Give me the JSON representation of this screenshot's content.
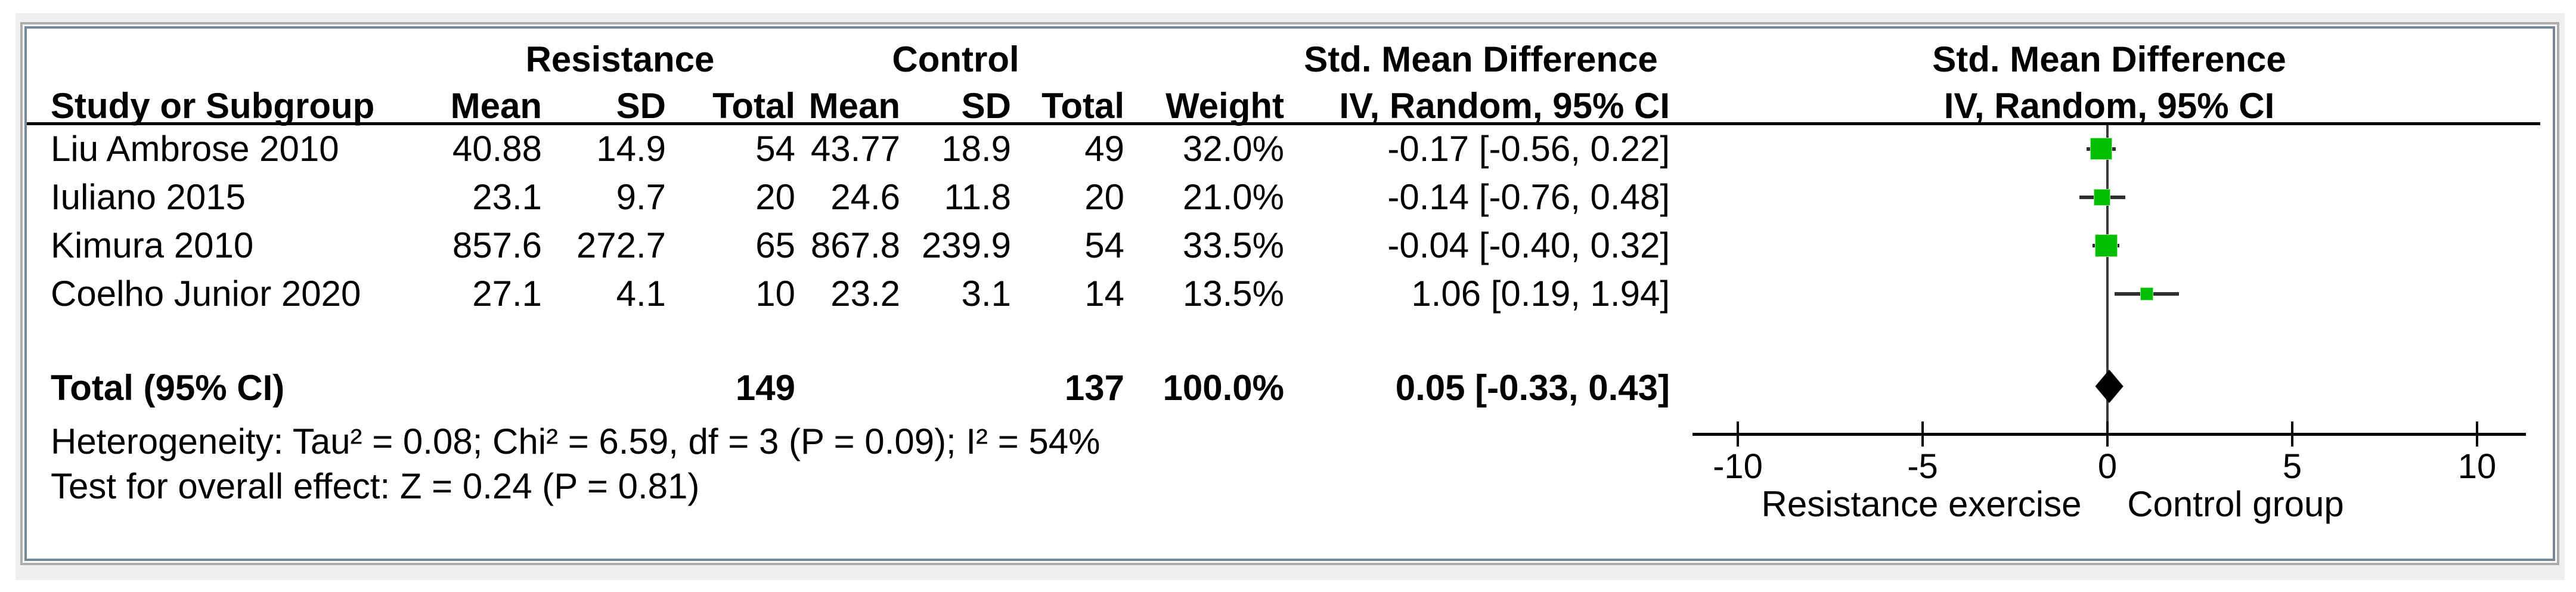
{
  "header": {
    "groups": {
      "resistance": "Resistance",
      "control": "Control",
      "smd": "Std. Mean Difference",
      "smd_plot": "Std. Mean Difference"
    },
    "columns": {
      "study": "Study or Subgroup",
      "mean": "Mean",
      "sd": "SD",
      "total": "Total",
      "weight": "Weight",
      "iv": "IV, Random, 95% CI",
      "iv_plot": "IV, Random, 95% CI"
    }
  },
  "table": {
    "rows": [
      {
        "study": "Liu Ambrose 2010",
        "r_mean": "40.88",
        "r_sd": "14.9",
        "r_total": "54",
        "c_mean": "43.77",
        "c_sd": "18.9",
        "c_total": "49",
        "weight": "32.0%",
        "smd_ci": "-0.17 [-0.56, 0.22]"
      },
      {
        "study": "Iuliano 2015",
        "r_mean": "23.1",
        "r_sd": "9.7",
        "r_total": "20",
        "c_mean": "24.6",
        "c_sd": "11.8",
        "c_total": "20",
        "weight": "21.0%",
        "smd_ci": "-0.14 [-0.76, 0.48]"
      },
      {
        "study": "Kimura 2010",
        "r_mean": "857.6",
        "r_sd": "272.7",
        "r_total": "65",
        "c_mean": "867.8",
        "c_sd": "239.9",
        "c_total": "54",
        "weight": "33.5%",
        "smd_ci": "-0.04 [-0.40, 0.32]"
      },
      {
        "study": "Coelho Junior 2020",
        "r_mean": "27.1",
        "r_sd": "4.1",
        "r_total": "10",
        "c_mean": "23.2",
        "c_sd": "3.1",
        "c_total": "14",
        "weight": "13.5%",
        "smd_ci": "1.06 [0.19, 1.94]"
      }
    ],
    "total_row": {
      "label": "Total (95% CI)",
      "r_total": "149",
      "c_total": "137",
      "weight": "100.0%",
      "smd_ci": "0.05 [-0.33, 0.43]"
    }
  },
  "footnotes": {
    "heterogeneity": "Heterogeneity: Tau² = 0.08; Chi² = 6.59, df = 3 (P = 0.09); I² = 54%",
    "overall_effect": "Test for overall effect: Z = 0.24 (P = 0.81)"
  },
  "axis": {
    "tick_labels": [
      "-10",
      "-5",
      "0",
      "5",
      "10"
    ],
    "left_label": "Resistance exercise",
    "right_label": "Control group"
  },
  "colors": {
    "marker_green": "#00be00",
    "whisker": "#2f2f2f",
    "diamond": "#000000",
    "panel_border": "#76879b",
    "outer_border": "#adadad",
    "backdrop": "#efefef"
  },
  "chart_data": {
    "type": "forest",
    "effect_measure": "Std. Mean Difference",
    "method": "IV, Random, 95% CI",
    "axis": {
      "ticks": [
        -10,
        -5,
        0,
        5,
        10
      ],
      "range_shown": [
        -11.2,
        11.3
      ],
      "left_label": "Resistance exercise",
      "right_label": "Control group"
    },
    "studies": [
      {
        "name": "Liu Ambrose 2010",
        "resistance": {
          "mean": 40.88,
          "sd": 14.9,
          "total": 54
        },
        "control": {
          "mean": 43.77,
          "sd": 18.9,
          "total": 49
        },
        "weight_pct": 32.0,
        "smd": -0.17,
        "ci_low": -0.56,
        "ci_high": 0.22,
        "marker_size": 35
      },
      {
        "name": "Iuliano 2015",
        "resistance": {
          "mean": 23.1,
          "sd": 9.7,
          "total": 20
        },
        "control": {
          "mean": 24.6,
          "sd": 11.8,
          "total": 20
        },
        "weight_pct": 21.0,
        "smd": -0.14,
        "ci_low": -0.76,
        "ci_high": 0.48,
        "marker_size": 26
      },
      {
        "name": "Kimura 2010",
        "resistance": {
          "mean": 857.6,
          "sd": 272.7,
          "total": 65
        },
        "control": {
          "mean": 867.8,
          "sd": 239.9,
          "total": 54
        },
        "weight_pct": 33.5,
        "smd": -0.04,
        "ci_low": -0.4,
        "ci_high": 0.32,
        "marker_size": 36
      },
      {
        "name": "Coelho Junior 2020",
        "resistance": {
          "mean": 27.1,
          "sd": 4.1,
          "total": 10
        },
        "control": {
          "mean": 23.2,
          "sd": 3.1,
          "total": 14
        },
        "weight_pct": 13.5,
        "smd": 1.06,
        "ci_low": 0.19,
        "ci_high": 1.94,
        "marker_size": 20
      }
    ],
    "total": {
      "label": "Total (95% CI)",
      "resistance_total": 149,
      "control_total": 137,
      "weight_pct": 100.0,
      "smd": 0.05,
      "ci_low": -0.33,
      "ci_high": 0.43,
      "heterogeneity": {
        "tau2": 0.08,
        "chi2": 6.59,
        "df": 3,
        "p": 0.09,
        "i2_pct": 54
      },
      "overall_effect": {
        "z": 0.24,
        "p": 0.81
      }
    }
  }
}
